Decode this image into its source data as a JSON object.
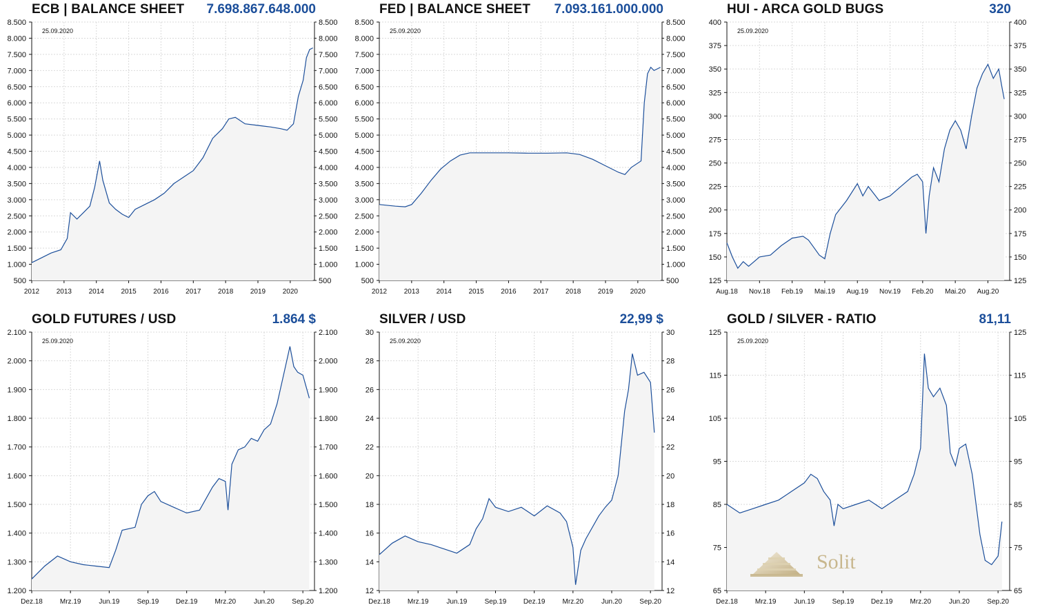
{
  "colors": {
    "line": "#1b4e9a",
    "fill": "#f4f4f4",
    "grid": "#d9d9d9",
    "value": "#1b4e9a",
    "logo": "#c8b78e"
  },
  "logo": {
    "text": "Solit"
  },
  "chart_data": [
    {
      "type": "area",
      "title": "ECB | BALANCE SHEET",
      "headline_value": "7.698.867.648.000",
      "date_label": "25.09.2020",
      "ylim": [
        500,
        8500
      ],
      "yticks": [
        "500",
        "1.000",
        "1.500",
        "2.000",
        "2.500",
        "3.000",
        "3.500",
        "4.000",
        "4.500",
        "5.000",
        "5.500",
        "6.000",
        "6.500",
        "7.000",
        "7.500",
        "8.000",
        "8.500"
      ],
      "xlim": [
        2012,
        2020.75
      ],
      "xticks": [
        "2012",
        "2013",
        "2014",
        "2015",
        "2016",
        "2017",
        "2018",
        "2019",
        "2020"
      ],
      "series": [
        {
          "points": [
            [
              2012,
              1050
            ],
            [
              2012.3,
              1200
            ],
            [
              2012.6,
              1350
            ],
            [
              2012.9,
              1450
            ],
            [
              2013.1,
              1800
            ],
            [
              2013.2,
              2600
            ],
            [
              2013.4,
              2400
            ],
            [
              2013.6,
              2600
            ],
            [
              2013.8,
              2800
            ],
            [
              2013.95,
              3400
            ],
            [
              2014.1,
              4200
            ],
            [
              2014.2,
              3600
            ],
            [
              2014.4,
              2900
            ],
            [
              2014.6,
              2700
            ],
            [
              2014.8,
              2550
            ],
            [
              2015.0,
              2450
            ],
            [
              2015.2,
              2700
            ],
            [
              2015.5,
              2850
            ],
            [
              2015.8,
              3000
            ],
            [
              2016.1,
              3200
            ],
            [
              2016.4,
              3500
            ],
            [
              2016.7,
              3700
            ],
            [
              2017.0,
              3900
            ],
            [
              2017.3,
              4300
            ],
            [
              2017.6,
              4900
            ],
            [
              2017.9,
              5200
            ],
            [
              2018.1,
              5500
            ],
            [
              2018.3,
              5550
            ],
            [
              2018.6,
              5350
            ],
            [
              2019.0,
              5300
            ],
            [
              2019.4,
              5250
            ],
            [
              2019.7,
              5200
            ],
            [
              2019.9,
              5150
            ],
            [
              2020.1,
              5350
            ],
            [
              2020.25,
              6200
            ],
            [
              2020.4,
              6700
            ],
            [
              2020.5,
              7400
            ],
            [
              2020.6,
              7650
            ],
            [
              2020.7,
              7700
            ]
          ]
        }
      ]
    },
    {
      "type": "area",
      "title": "FED | BALANCE SHEET",
      "headline_value": "7.093.161.000.000",
      "date_label": "25.09.2020",
      "ylim": [
        500,
        8500
      ],
      "yticks": [
        "500",
        "1.000",
        "1.500",
        "2.000",
        "2.500",
        "3.000",
        "3.500",
        "4.000",
        "4.500",
        "5.000",
        "5.500",
        "6.000",
        "6.500",
        "7.000",
        "7.500",
        "8.000",
        "8.500"
      ],
      "xlim": [
        2012,
        2020.75
      ],
      "xticks": [
        "2012",
        "2013",
        "2014",
        "2015",
        "2016",
        "2017",
        "2018",
        "2019",
        "2020"
      ],
      "series": [
        {
          "points": [
            [
              2012,
              2850
            ],
            [
              2012.5,
              2800
            ],
            [
              2012.8,
              2780
            ],
            [
              2013.0,
              2850
            ],
            [
              2013.3,
              3200
            ],
            [
              2013.6,
              3600
            ],
            [
              2013.9,
              3950
            ],
            [
              2014.2,
              4200
            ],
            [
              2014.5,
              4380
            ],
            [
              2014.8,
              4450
            ],
            [
              2015.2,
              4450
            ],
            [
              2016.0,
              4450
            ],
            [
              2016.6,
              4440
            ],
            [
              2017.2,
              4440
            ],
            [
              2017.8,
              4450
            ],
            [
              2018.2,
              4400
            ],
            [
              2018.6,
              4250
            ],
            [
              2019.0,
              4050
            ],
            [
              2019.4,
              3850
            ],
            [
              2019.6,
              3780
            ],
            [
              2019.8,
              4000
            ],
            [
              2020.1,
              4200
            ],
            [
              2020.2,
              6000
            ],
            [
              2020.3,
              6900
            ],
            [
              2020.4,
              7100
            ],
            [
              2020.5,
              7000
            ],
            [
              2020.6,
              7050
            ],
            [
              2020.7,
              7100
            ]
          ]
        }
      ]
    },
    {
      "type": "line",
      "title": "HUI - ARCA GOLD BUGS",
      "headline_value": "320",
      "date_label": "25.09.2020",
      "ylim": [
        125,
        400
      ],
      "yticks": [
        "125",
        "150",
        "175",
        "200",
        "225",
        "250",
        "275",
        "300",
        "325",
        "350",
        "375",
        "400"
      ],
      "xlim": [
        0,
        26
      ],
      "xticks": [
        "Aug.18",
        "Nov.18",
        "Feb.19",
        "Mai.19",
        "Aug.19",
        "Nov.19",
        "Feb.20",
        "Mai.20",
        "Aug.20"
      ],
      "series": [
        {
          "points": [
            [
              0,
              165
            ],
            [
              0.5,
              150
            ],
            [
              1,
              138
            ],
            [
              1.5,
              145
            ],
            [
              2,
              140
            ],
            [
              3,
              150
            ],
            [
              4,
              152
            ],
            [
              5,
              162
            ],
            [
              6,
              170
            ],
            [
              7,
              172
            ],
            [
              7.5,
              168
            ],
            [
              8,
              160
            ],
            [
              8.5,
              152
            ],
            [
              9,
              148
            ],
            [
              9.5,
              175
            ],
            [
              10,
              195
            ],
            [
              11,
              210
            ],
            [
              12,
              228
            ],
            [
              12.5,
              215
            ],
            [
              13,
              225
            ],
            [
              14,
              210
            ],
            [
              15,
              215
            ],
            [
              16,
              225
            ],
            [
              17,
              235
            ],
            [
              17.5,
              238
            ],
            [
              18,
              230
            ],
            [
              18.3,
              175
            ],
            [
              18.6,
              215
            ],
            [
              19,
              245
            ],
            [
              19.5,
              230
            ],
            [
              20,
              265
            ],
            [
              20.5,
              285
            ],
            [
              21,
              295
            ],
            [
              21.5,
              285
            ],
            [
              22,
              265
            ],
            [
              22.5,
              300
            ],
            [
              23,
              330
            ],
            [
              23.5,
              345
            ],
            [
              24,
              355
            ],
            [
              24.5,
              340
            ],
            [
              25,
              350
            ],
            [
              25.3,
              330
            ],
            [
              25.5,
              318
            ]
          ]
        }
      ]
    },
    {
      "type": "area",
      "title": "GOLD FUTURES / USD",
      "headline_value": "1.864 $",
      "date_label": "25.09.2020",
      "ylim": [
        1200,
        2100
      ],
      "yticks": [
        "1.200",
        "1.300",
        "1.400",
        "1.500",
        "1.600",
        "1.700",
        "1.800",
        "1.900",
        "2.000",
        "2.100"
      ],
      "xlim": [
        0,
        21.9
      ],
      "xticks": [
        "Dez.18",
        "Mrz.19",
        "Jun.19",
        "Sep.19",
        "Dez.19",
        "Mrz.20",
        "Jun.20",
        "Sep.20"
      ],
      "series": [
        {
          "points": [
            [
              0,
              1240
            ],
            [
              1,
              1285
            ],
            [
              2,
              1320
            ],
            [
              3,
              1300
            ],
            [
              4,
              1290
            ],
            [
              5,
              1285
            ],
            [
              6,
              1280
            ],
            [
              6.5,
              1340
            ],
            [
              7,
              1410
            ],
            [
              8,
              1420
            ],
            [
              8.5,
              1500
            ],
            [
              9,
              1530
            ],
            [
              9.5,
              1545
            ],
            [
              10,
              1510
            ],
            [
              11,
              1490
            ],
            [
              12,
              1470
            ],
            [
              13,
              1480
            ],
            [
              14,
              1560
            ],
            [
              14.5,
              1590
            ],
            [
              15,
              1580
            ],
            [
              15.2,
              1480
            ],
            [
              15.5,
              1640
            ],
            [
              16,
              1690
            ],
            [
              16.5,
              1700
            ],
            [
              17,
              1730
            ],
            [
              17.5,
              1720
            ],
            [
              18,
              1760
            ],
            [
              18.5,
              1780
            ],
            [
              19,
              1850
            ],
            [
              19.5,
              1950
            ],
            [
              20,
              2050
            ],
            [
              20.3,
              1980
            ],
            [
              20.6,
              1960
            ],
            [
              21,
              1950
            ],
            [
              21.5,
              1870
            ]
          ]
        }
      ]
    },
    {
      "type": "area",
      "title": "SILVER / USD",
      "headline_value": "22,99 $",
      "date_label": "25.09.2020",
      "ylim": [
        12,
        30
      ],
      "yticks": [
        "12",
        "14",
        "16",
        "18",
        "20",
        "22",
        "24",
        "26",
        "28",
        "30"
      ],
      "xlim": [
        0,
        21.9
      ],
      "xticks": [
        "Dez.18",
        "Mrz.19",
        "Jun.19",
        "Sep.19",
        "Dez.19",
        "Mrz.20",
        "Jun.20",
        "Sep.20"
      ],
      "series": [
        {
          "points": [
            [
              0,
              14.5
            ],
            [
              1,
              15.3
            ],
            [
              2,
              15.8
            ],
            [
              3,
              15.4
            ],
            [
              4,
              15.2
            ],
            [
              5,
              14.9
            ],
            [
              6,
              14.6
            ],
            [
              7,
              15.2
            ],
            [
              7.5,
              16.3
            ],
            [
              8,
              17.0
            ],
            [
              8.5,
              18.4
            ],
            [
              9,
              17.8
            ],
            [
              10,
              17.5
            ],
            [
              11,
              17.8
            ],
            [
              12,
              17.2
            ],
            [
              13,
              17.9
            ],
            [
              14,
              17.4
            ],
            [
              14.5,
              16.8
            ],
            [
              15,
              15.0
            ],
            [
              15.2,
              12.4
            ],
            [
              15.6,
              14.8
            ],
            [
              16,
              15.6
            ],
            [
              17,
              17.2
            ],
            [
              17.5,
              17.8
            ],
            [
              18,
              18.3
            ],
            [
              18.5,
              20.0
            ],
            [
              19,
              24.5
            ],
            [
              19.3,
              26.0
            ],
            [
              19.6,
              28.5
            ],
            [
              20,
              27.0
            ],
            [
              20.5,
              27.2
            ],
            [
              21,
              26.5
            ],
            [
              21.3,
              23.0
            ]
          ]
        }
      ]
    },
    {
      "type": "area",
      "title": "GOLD / SILVER - RATIO",
      "headline_value": "81,11",
      "date_label": "25.09.2020",
      "ylim": [
        65,
        125
      ],
      "yticks": [
        "65",
        "75",
        "85",
        "95",
        "105",
        "115",
        "125"
      ],
      "xlim": [
        0,
        21.9
      ],
      "xticks": [
        "Dez.18",
        "Mrz.19",
        "Jun.19",
        "Sep.19",
        "Dez.19",
        "Mrz.20",
        "Jun.20",
        "Sep.20"
      ],
      "series": [
        {
          "points": [
            [
              0,
              85
            ],
            [
              1,
              83
            ],
            [
              2,
              84
            ],
            [
              3,
              85
            ],
            [
              4,
              86
            ],
            [
              5,
              88
            ],
            [
              6,
              90
            ],
            [
              6.5,
              92
            ],
            [
              7,
              91
            ],
            [
              7.5,
              88
            ],
            [
              8,
              86
            ],
            [
              8.3,
              80
            ],
            [
              8.6,
              85
            ],
            [
              9,
              84
            ],
            [
              10,
              85
            ],
            [
              11,
              86
            ],
            [
              11.5,
              85
            ],
            [
              12,
              84
            ],
            [
              13,
              86
            ],
            [
              14,
              88
            ],
            [
              14.5,
              92
            ],
            [
              15,
              98
            ],
            [
              15.3,
              120
            ],
            [
              15.6,
              112
            ],
            [
              16,
              110
            ],
            [
              16.5,
              112
            ],
            [
              17,
              108
            ],
            [
              17.3,
              97
            ],
            [
              17.7,
              94
            ],
            [
              18,
              98
            ],
            [
              18.5,
              99
            ],
            [
              19,
              92
            ],
            [
              19.3,
              85
            ],
            [
              19.6,
              78
            ],
            [
              20,
              72
            ],
            [
              20.5,
              71
            ],
            [
              21,
              73
            ],
            [
              21.3,
              81
            ]
          ]
        }
      ]
    }
  ]
}
